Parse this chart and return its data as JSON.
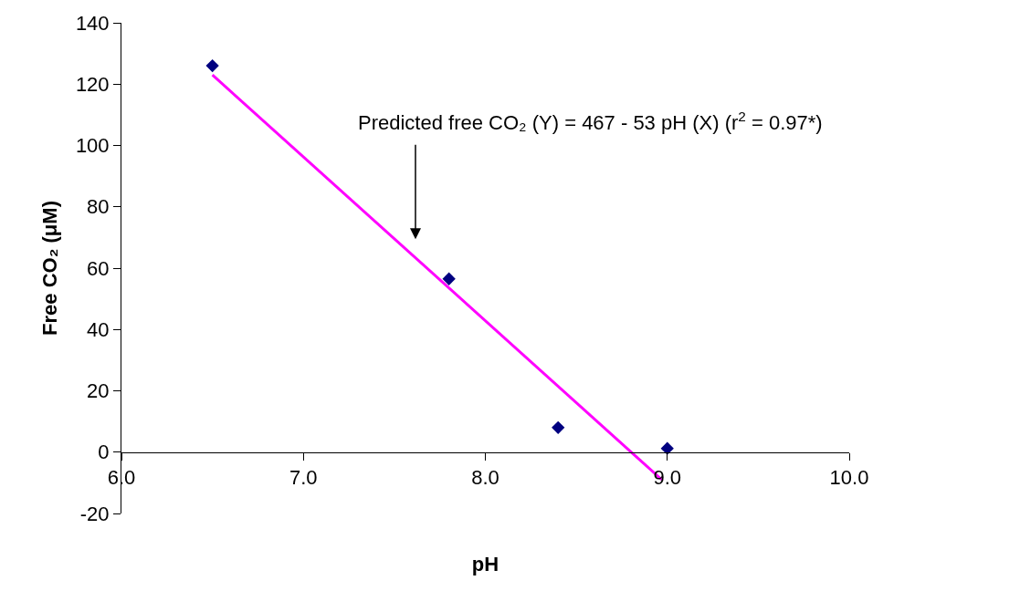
{
  "chart_data": {
    "type": "scatter",
    "xlabel": "pH",
    "ylabel": "Free CO₂ (μM)",
    "xlim": [
      6.0,
      10.0
    ],
    "xticks": [
      {
        "value": 6,
        "label": "6.0"
      },
      {
        "value": 7,
        "label": "7.0"
      },
      {
        "value": 8,
        "label": "8.0"
      },
      {
        "value": 9,
        "label": "9.0"
      },
      {
        "value": 10,
        "label": "10.0"
      }
    ],
    "ylim": [
      -20,
      140
    ],
    "yticks": [
      -20,
      0,
      20,
      40,
      60,
      80,
      100,
      120,
      140
    ],
    "series": [
      {
        "color": "#000080",
        "marker": "diamond",
        "x": [
          6.5,
          7.8,
          8.4,
          9.0
        ],
        "values": [
          126,
          56.5,
          8,
          1.2
        ]
      },
      {
        "type": "line",
        "color": "#ff00ff",
        "marker": "none",
        "x": [
          6.5,
          8.97
        ],
        "values": [
          123,
          -9
        ]
      }
    ],
    "annotations": [
      "Predicted free CO₂ (Y) = 467 - 53 pH (X) (r$^{2}$ = 0.97*)"
    ]
  }
}
